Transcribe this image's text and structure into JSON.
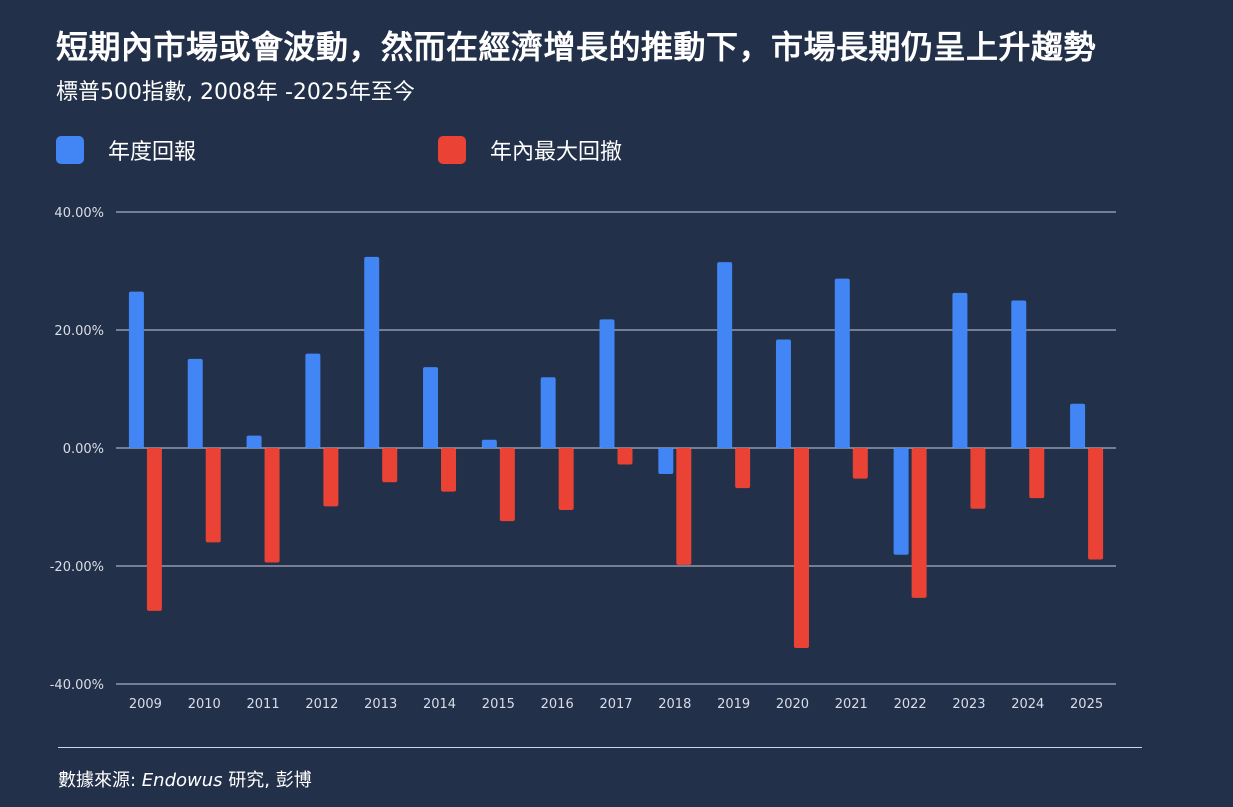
{
  "title": "短期內市場或會波動，然而在經濟增長的推動下，市場長期仍呈上升趨勢",
  "subtitle": "標普500指數, 2008年 -2025年至今",
  "footer": {
    "prefix": "數據來源: ",
    "brand": "Endowus",
    "suffix": " 研究, 彭博"
  },
  "chart_data": {
    "type": "bar",
    "categories": [
      "2009",
      "2010",
      "2011",
      "2012",
      "2013",
      "2014",
      "2015",
      "2016",
      "2017",
      "2018",
      "2019",
      "2020",
      "2021",
      "2022",
      "2023",
      "2024",
      "2025"
    ],
    "series": [
      {
        "name": "年度回報",
        "color": "#4285f4",
        "values": [
          26.5,
          15.1,
          2.1,
          16.0,
          32.4,
          13.7,
          1.4,
          12.0,
          21.8,
          -4.4,
          31.5,
          18.4,
          28.7,
          -18.1,
          26.3,
          25.0,
          7.5
        ]
      },
      {
        "name": "年內最大回撤",
        "color": "#ea4335",
        "values": [
          -27.6,
          -16.0,
          -19.4,
          -9.9,
          -5.8,
          -7.4,
          -12.4,
          -10.5,
          -2.8,
          -19.8,
          -6.8,
          -33.9,
          -5.2,
          -25.4,
          -10.3,
          -8.5,
          -18.9
        ]
      }
    ],
    "y_ticks": [
      "40.00%",
      "20.00%",
      "0.00%",
      "-20.00%",
      "-40.00%"
    ],
    "ylim": [
      -40,
      40
    ],
    "grid": true,
    "legend": "top-left"
  }
}
